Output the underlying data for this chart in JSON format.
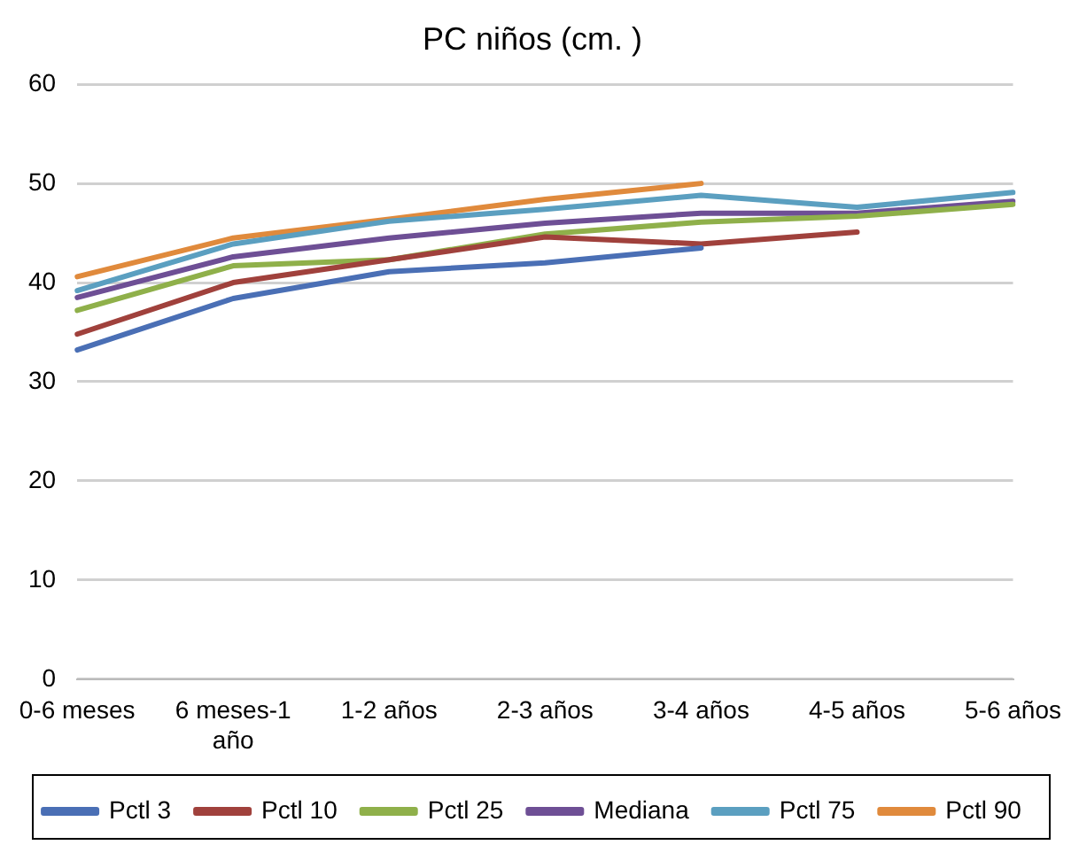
{
  "chart_data": {
    "type": "line",
    "title": "PC niños (cm. )",
    "categories": [
      "0-6 meses",
      "6 meses-1 año",
      "1-2 años",
      "2-3 años",
      "3-4 años",
      "4-5 años",
      "5-6 años"
    ],
    "series": [
      {
        "name": "Pctl 3",
        "color": "#4a6fb5",
        "values": [
          33.2,
          38.4,
          41.1,
          42.0,
          43.5,
          null,
          null
        ]
      },
      {
        "name": "Pctl 10",
        "color": "#a0413c",
        "values": [
          34.8,
          40.0,
          42.3,
          44.6,
          43.9,
          45.1,
          null
        ]
      },
      {
        "name": "Pctl 25",
        "color": "#8fb04a",
        "values": [
          37.2,
          41.7,
          42.3,
          44.9,
          46.1,
          46.7,
          47.9
        ]
      },
      {
        "name": "Mediana",
        "color": "#6e4f95",
        "values": [
          38.5,
          42.6,
          44.5,
          46.0,
          47.0,
          47.0,
          48.2
        ]
      },
      {
        "name": "Pctl 75",
        "color": "#5b9fc0",
        "values": [
          39.2,
          43.9,
          46.2,
          47.4,
          48.8,
          47.6,
          49.1
        ]
      },
      {
        "name": "Pctl 90",
        "color": "#e08a3c",
        "values": [
          40.6,
          44.5,
          46.4,
          48.4,
          50.0,
          null,
          null
        ]
      }
    ],
    "ylim": [
      0,
      60
    ],
    "yticks": [
      0,
      10,
      20,
      30,
      40,
      50,
      60
    ],
    "grid": "y",
    "legend": "bottom",
    "marker": "none",
    "line_style": "solid"
  }
}
